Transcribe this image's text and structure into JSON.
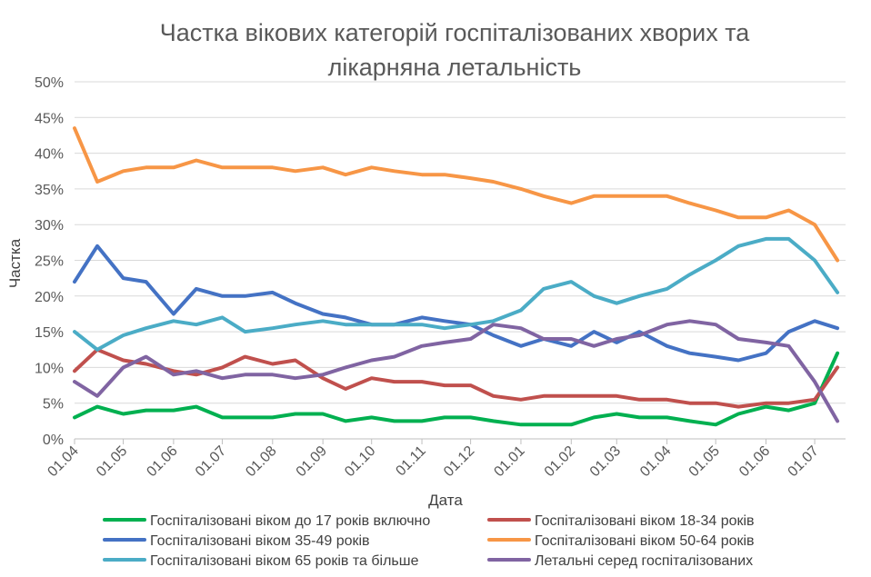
{
  "chart_data": {
    "type": "line",
    "title": "Частка вікових категорій госпіталізованих хворих та лікарняна летальність",
    "title_lines": [
      "Частка вікових категорій госпіталізованих хворих та",
      "лікарняна летальність"
    ],
    "xlabel": "Дата",
    "ylabel": "Частка",
    "ylim": [
      0,
      0.5
    ],
    "y_ticks": [
      "0%",
      "5%",
      "10%",
      "15%",
      "20%",
      "25%",
      "30%",
      "35%",
      "40%",
      "45%",
      "50%"
    ],
    "x_ticks": [
      "01.04",
      "01.05",
      "01.06",
      "01.07",
      "01.08",
      "01.09",
      "01.10",
      "01.11",
      "01.12",
      "01.01",
      "01.02",
      "01.03",
      "01.04",
      "01.05",
      "01.06",
      "01.07"
    ],
    "grid": true,
    "legend_position": "bottom",
    "x_dates": [
      "2020-04-01",
      "2020-04-15",
      "2020-05-01",
      "2020-05-15",
      "2020-06-01",
      "2020-06-15",
      "2020-07-01",
      "2020-07-15",
      "2020-08-01",
      "2020-08-15",
      "2020-09-01",
      "2020-09-15",
      "2020-10-01",
      "2020-10-15",
      "2020-11-01",
      "2020-11-15",
      "2020-12-01",
      "2020-12-15",
      "2021-01-01",
      "2021-01-15",
      "2021-02-01",
      "2021-02-15",
      "2021-03-01",
      "2021-03-15",
      "2021-04-01",
      "2021-04-15",
      "2021-05-01",
      "2021-05-15",
      "2021-06-01",
      "2021-06-15",
      "2021-07-01",
      "2021-07-15"
    ],
    "series": [
      {
        "name": "Госпіталізовані віком до 17 років включно",
        "color": "#00b050",
        "values": [
          0.03,
          0.045,
          0.035,
          0.04,
          0.04,
          0.045,
          0.03,
          0.03,
          0.03,
          0.035,
          0.035,
          0.025,
          0.03,
          0.025,
          0.025,
          0.03,
          0.03,
          0.025,
          0.02,
          0.02,
          0.02,
          0.03,
          0.035,
          0.03,
          0.03,
          0.025,
          0.02,
          0.035,
          0.045,
          0.04,
          0.05,
          0.12
        ]
      },
      {
        "name": "Госпіталізовані віком 18-34 років",
        "color": "#c0504d",
        "values": [
          0.095,
          0.125,
          0.11,
          0.105,
          0.095,
          0.09,
          0.1,
          0.115,
          0.105,
          0.11,
          0.085,
          0.07,
          0.085,
          0.08,
          0.08,
          0.075,
          0.075,
          0.06,
          0.055,
          0.06,
          0.06,
          0.06,
          0.06,
          0.055,
          0.055,
          0.05,
          0.05,
          0.045,
          0.05,
          0.05,
          0.055,
          0.1
        ]
      },
      {
        "name": "Госпіталізовані віком 35-49 років",
        "color": "#4472c4",
        "values": [
          0.22,
          0.27,
          0.225,
          0.22,
          0.175,
          0.21,
          0.2,
          0.2,
          0.205,
          0.19,
          0.175,
          0.17,
          0.16,
          0.16,
          0.17,
          0.165,
          0.16,
          0.145,
          0.13,
          0.14,
          0.13,
          0.15,
          0.135,
          0.15,
          0.13,
          0.12,
          0.115,
          0.11,
          0.12,
          0.15,
          0.165,
          0.155
        ]
      },
      {
        "name": "Госпіталізовані віком 50-64 років",
        "color": "#f79646",
        "values": [
          0.435,
          0.36,
          0.375,
          0.38,
          0.38,
          0.39,
          0.38,
          0.38,
          0.38,
          0.375,
          0.38,
          0.37,
          0.38,
          0.375,
          0.37,
          0.37,
          0.365,
          0.36,
          0.35,
          0.34,
          0.33,
          0.34,
          0.34,
          0.34,
          0.34,
          0.33,
          0.32,
          0.31,
          0.31,
          0.32,
          0.3,
          0.25
        ]
      },
      {
        "name": "Госпіталізовані віком 65 років та більше",
        "color": "#4bacc6",
        "values": [
          0.15,
          0.125,
          0.145,
          0.155,
          0.165,
          0.16,
          0.17,
          0.15,
          0.155,
          0.16,
          0.165,
          0.16,
          0.16,
          0.16,
          0.16,
          0.155,
          0.16,
          0.165,
          0.18,
          0.21,
          0.22,
          0.2,
          0.19,
          0.2,
          0.21,
          0.23,
          0.25,
          0.27,
          0.28,
          0.28,
          0.25,
          0.205
        ]
      },
      {
        "name": "Летальні серед госпіталізованих",
        "color": "#8064a2",
        "values": [
          0.08,
          0.06,
          0.1,
          0.115,
          0.09,
          0.095,
          0.085,
          0.09,
          0.09,
          0.085,
          0.09,
          0.1,
          0.11,
          0.115,
          0.13,
          0.135,
          0.14,
          0.16,
          0.155,
          0.14,
          0.14,
          0.13,
          0.14,
          0.145,
          0.16,
          0.165,
          0.16,
          0.14,
          0.135,
          0.13,
          0.08,
          0.025
        ]
      }
    ]
  }
}
